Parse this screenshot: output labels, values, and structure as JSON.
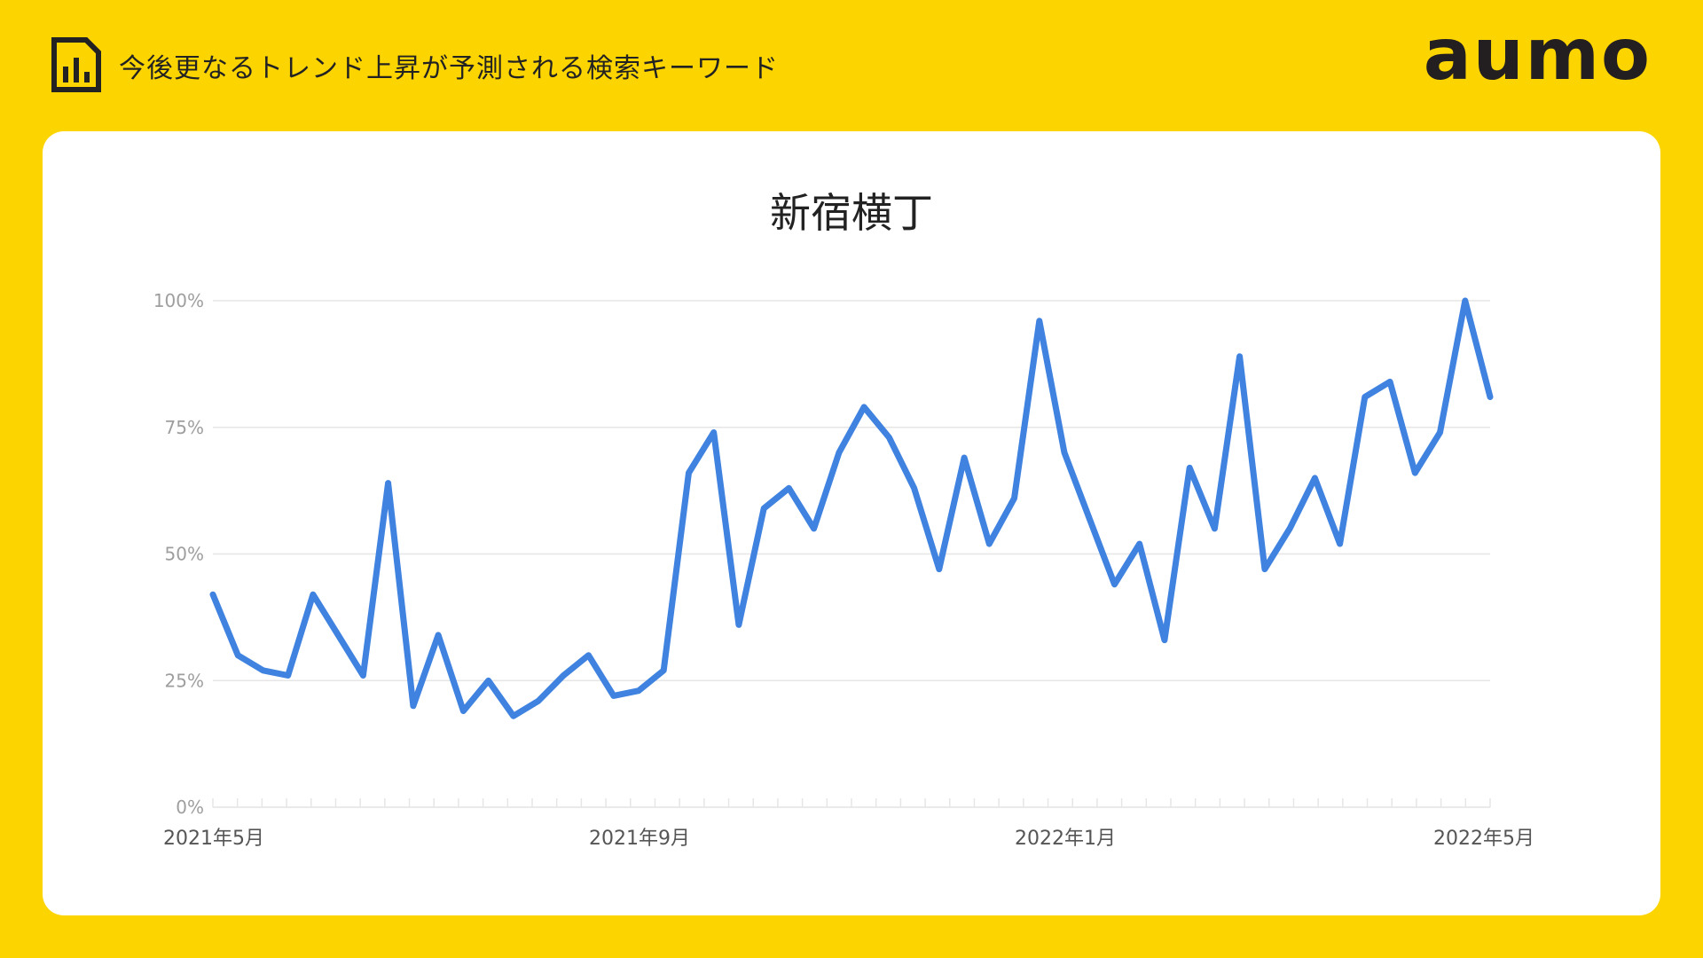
{
  "header": {
    "title": "今後更なるトレンド上昇が予測される検索キーワード",
    "icon": "bar-chart-document-icon"
  },
  "brand": {
    "logo": "aumo",
    "background_color": "#FCD400",
    "line_color": "#3F82E0"
  },
  "chart_data": {
    "type": "line",
    "title": "新宿横丁",
    "xlabel": "",
    "ylabel": "",
    "ylim": [
      0,
      100
    ],
    "yticks": [
      "0%",
      "25%",
      "50%",
      "75%",
      "100%"
    ],
    "xtick_labels": [
      "2021年5月",
      "2021年9月",
      "2022年1月",
      "2022年5月"
    ],
    "grid": true,
    "legend": "none",
    "series": [
      {
        "values": [
          42,
          30,
          27,
          26,
          42,
          34,
          26,
          64,
          20,
          34,
          19,
          25,
          18,
          21,
          26,
          30,
          22,
          23,
          27,
          66,
          74,
          36,
          59,
          63,
          55,
          70,
          79,
          73,
          63,
          47,
          69,
          52,
          61,
          96,
          70,
          57,
          44,
          52,
          33,
          67,
          55,
          89,
          47,
          55,
          65,
          52,
          81,
          84,
          66,
          74,
          100,
          81
        ]
      }
    ]
  }
}
